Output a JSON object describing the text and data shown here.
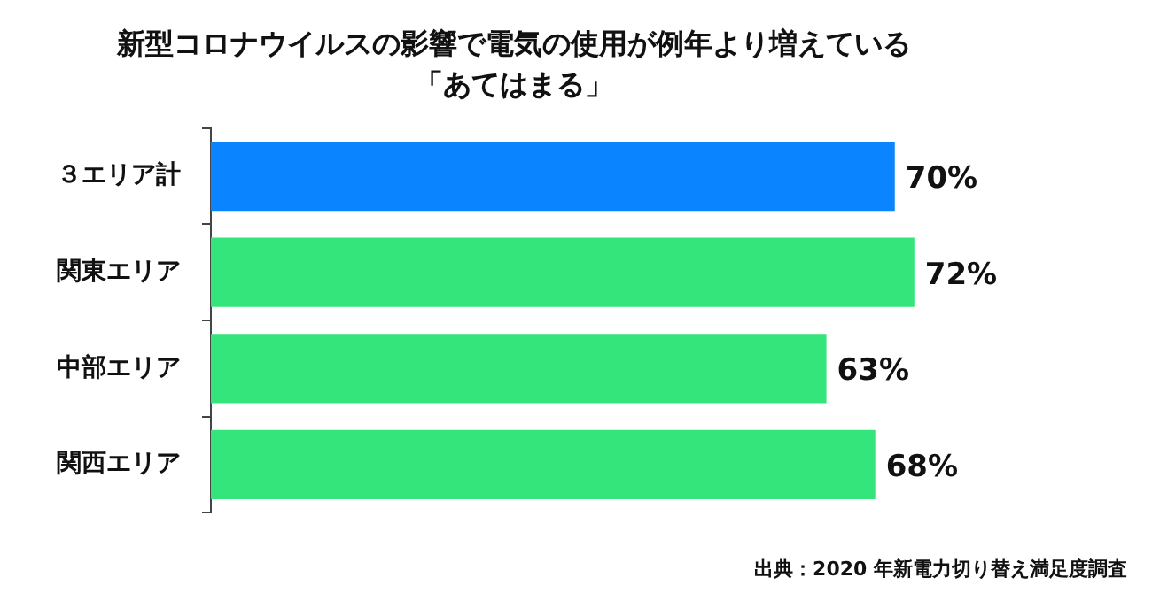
{
  "chart_data": {
    "type": "bar",
    "orientation": "horizontal",
    "title": "新型コロナウイルスの影響で電気の使用が例年より増えている",
    "subtitle": "「あてはまる」",
    "categories": [
      "３エリア計",
      "関東エリア",
      "中部エリア",
      "関西エリア"
    ],
    "values": [
      70,
      72,
      63,
      68
    ],
    "colors": [
      "#0a84ff",
      "#33e57a",
      "#33e57a",
      "#33e57a"
    ],
    "value_labels": [
      "70%",
      "72%",
      "63%",
      "68%"
    ],
    "tick_labels": "y",
    "legend": false,
    "annotations": [
      "出典：2020 年新電力切り替え満足度調査"
    ]
  }
}
